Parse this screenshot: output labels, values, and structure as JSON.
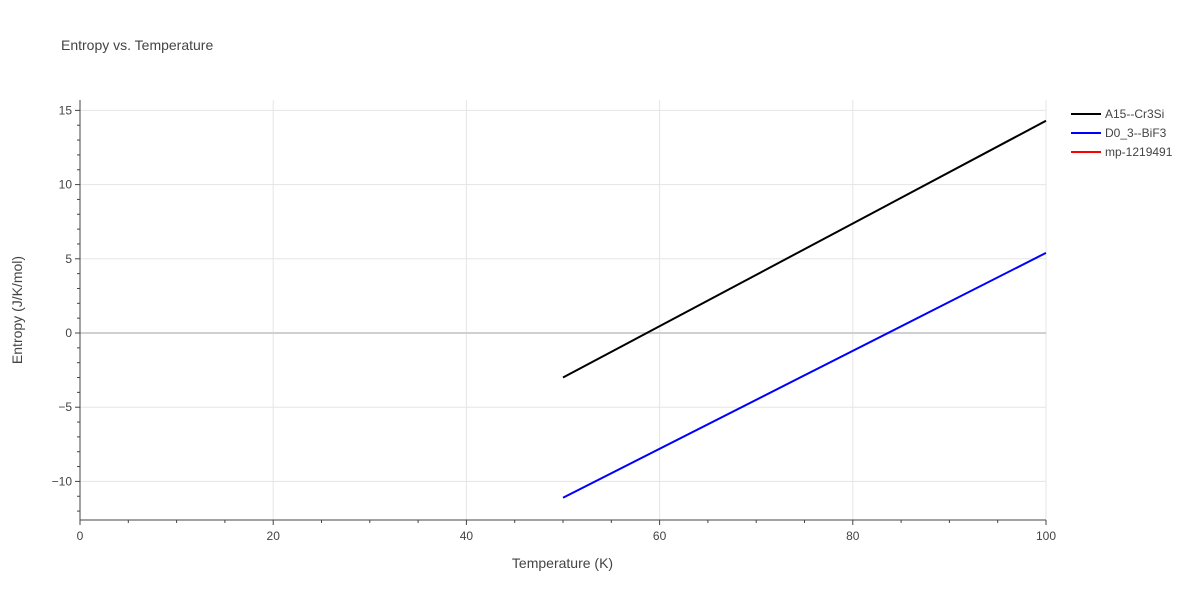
{
  "chart_data": {
    "type": "line",
    "title": "Entropy vs. Temperature",
    "xlabel": "Temperature (K)",
    "ylabel": "Entropy (J/K/mol)",
    "xlim": [
      0,
      100
    ],
    "ylim": [
      -12.6,
      15.7
    ],
    "xticks": [
      0,
      20,
      40,
      60,
      80,
      100
    ],
    "yticks": [
      -10,
      -5,
      0,
      5,
      10,
      15
    ],
    "ytick_labels": [
      "−10",
      "−5",
      "0",
      "5",
      "10",
      "15"
    ],
    "x_minor_step": 5,
    "y_minor_step": 1,
    "grid": true,
    "legend_position": "top-right",
    "series": [
      {
        "name": "A15--Cr3Si",
        "color": "#000000",
        "x": [
          50,
          100
        ],
        "y": [
          -3.0,
          14.3
        ]
      },
      {
        "name": "D0_3--BiF3",
        "color": "#0000ff",
        "x": [
          50,
          100
        ],
        "y": [
          -11.1,
          5.4
        ]
      },
      {
        "name": "mp-1219491",
        "color": "#ff0000",
        "x": [],
        "y": []
      }
    ]
  }
}
